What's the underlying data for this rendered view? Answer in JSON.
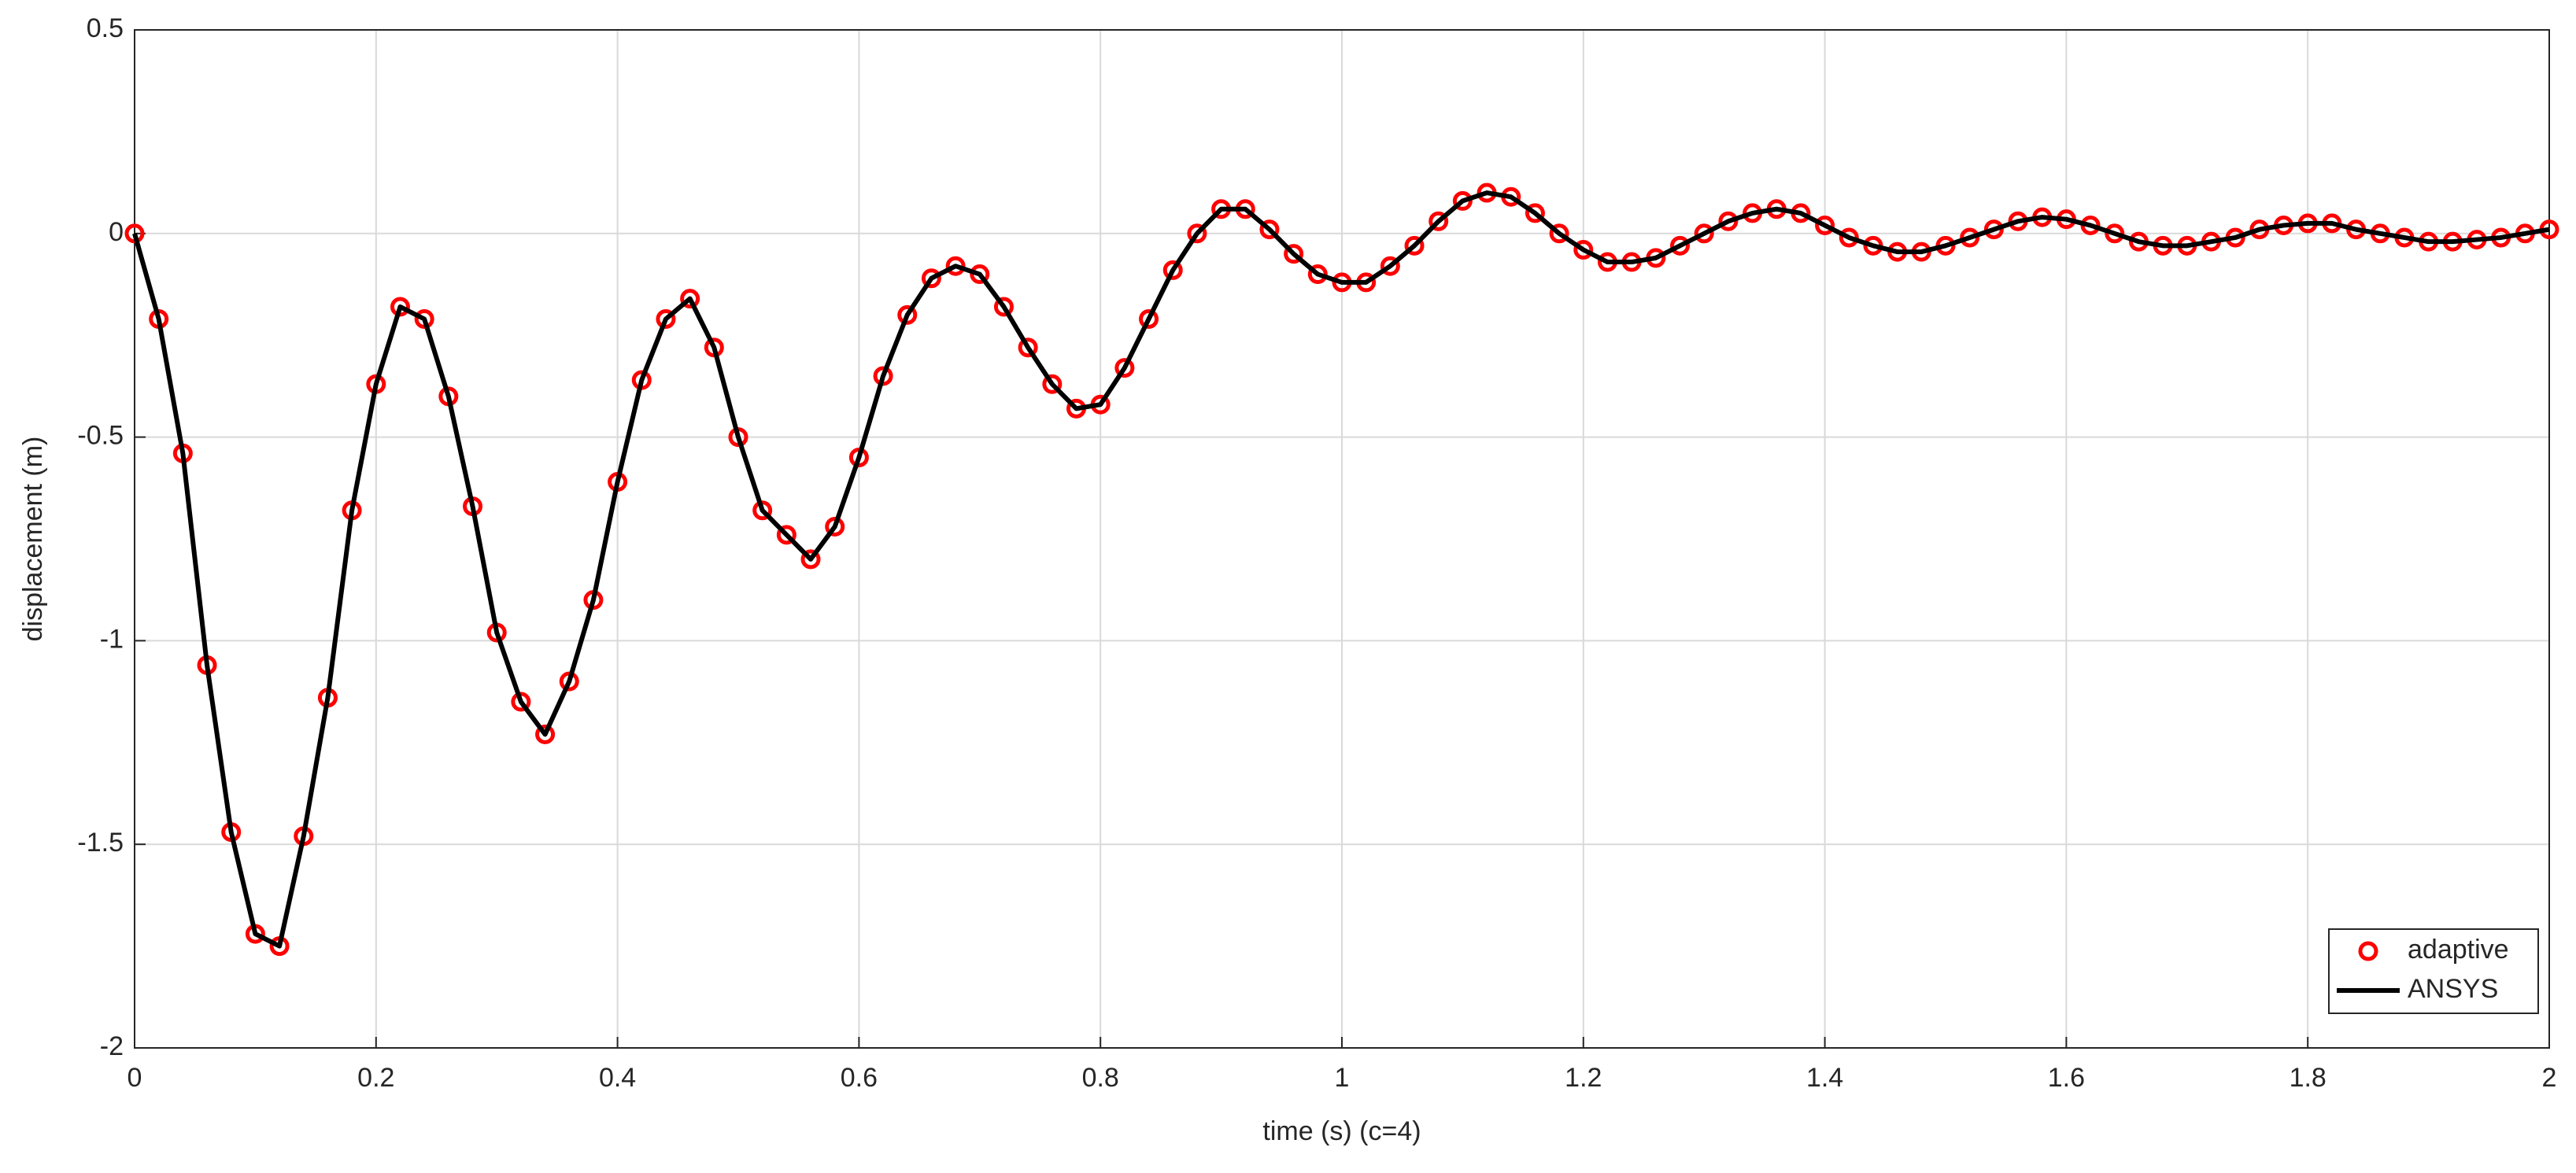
{
  "chart_data": {
    "type": "line",
    "xlabel": "time (s) (c=4)",
    "ylabel": "displacement (m)",
    "x": [
      0,
      0.02,
      0.04,
      0.06,
      0.08,
      0.1,
      0.12,
      0.14,
      0.16,
      0.18,
      0.2,
      0.22,
      0.24,
      0.26,
      0.28,
      0.3,
      0.32,
      0.34,
      0.36,
      0.38,
      0.4,
      0.42,
      0.44,
      0.46,
      0.48,
      0.5,
      0.52,
      0.54,
      0.56,
      0.58,
      0.6,
      0.62,
      0.64,
      0.66,
      0.68,
      0.7,
      0.72,
      0.74,
      0.76,
      0.78,
      0.8,
      0.82,
      0.84,
      0.86,
      0.88,
      0.9,
      0.92,
      0.94,
      0.96,
      0.98,
      1,
      1.02,
      1.04,
      1.06,
      1.08,
      1.1,
      1.12,
      1.14,
      1.16,
      1.18,
      1.2,
      1.22,
      1.24,
      1.26,
      1.28,
      1.3,
      1.32,
      1.34,
      1.36,
      1.38,
      1.4,
      1.42,
      1.44,
      1.46,
      1.48,
      1.5,
      1.52,
      1.54,
      1.56,
      1.58,
      1.6,
      1.62,
      1.64,
      1.66,
      1.68,
      1.7,
      1.72,
      1.74,
      1.76,
      1.78,
      1.8,
      1.82,
      1.84,
      1.86,
      1.88,
      1.9,
      1.92,
      1.94,
      1.96,
      1.98,
      2
    ],
    "series": [
      {
        "name": "adaptive",
        "color": "#ff0000",
        "mode": "markers",
        "values": [
          0,
          -0.21,
          -0.54,
          -1.06,
          -1.47,
          -1.72,
          -1.75,
          -1.48,
          -1.14,
          -0.68,
          -0.37,
          -0.18,
          -0.21,
          -0.4,
          -0.67,
          -0.98,
          -1.15,
          -1.23,
          -1.1,
          -0.9,
          -0.61,
          -0.36,
          -0.21,
          -0.16,
          -0.28,
          -0.5,
          -0.68,
          -0.74,
          -0.8,
          -0.72,
          -0.55,
          -0.35,
          -0.2,
          -0.11,
          -0.08,
          -0.1,
          -0.18,
          -0.28,
          -0.37,
          -0.43,
          -0.42,
          -0.33,
          -0.21,
          -0.09,
          0,
          0.06,
          0.06,
          0.01,
          -0.05,
          -0.1,
          -0.12,
          -0.12,
          -0.08,
          -0.03,
          0.03,
          0.08,
          0.1,
          0.09,
          0.05,
          0,
          -0.04,
          -0.07,
          -0.07,
          -0.06,
          -0.03,
          0,
          0.03,
          0.05,
          0.06,
          0.05,
          0.02,
          -0.01,
          -0.03,
          -0.045,
          -0.045,
          -0.03,
          -0.01,
          0.01,
          0.03,
          0.04,
          0.035,
          0.02,
          0,
          -0.02,
          -0.03,
          -0.03,
          -0.02,
          -0.01,
          0.01,
          0.02,
          0.025,
          0.025,
          0.01,
          0,
          -0.01,
          -0.02,
          -0.02,
          -0.015,
          -0.01,
          0,
          0.01
        ]
      },
      {
        "name": "ANSYS",
        "color": "#000000",
        "mode": "line",
        "values": [
          0,
          -0.21,
          -0.54,
          -1.06,
          -1.47,
          -1.72,
          -1.75,
          -1.48,
          -1.14,
          -0.68,
          -0.37,
          -0.18,
          -0.21,
          -0.4,
          -0.67,
          -0.98,
          -1.15,
          -1.23,
          -1.1,
          -0.9,
          -0.61,
          -0.36,
          -0.21,
          -0.16,
          -0.28,
          -0.5,
          -0.68,
          -0.74,
          -0.8,
          -0.72,
          -0.55,
          -0.35,
          -0.2,
          -0.11,
          -0.08,
          -0.1,
          -0.18,
          -0.28,
          -0.37,
          -0.43,
          -0.42,
          -0.33,
          -0.21,
          -0.09,
          0,
          0.06,
          0.06,
          0.01,
          -0.05,
          -0.1,
          -0.12,
          -0.12,
          -0.08,
          -0.03,
          0.03,
          0.08,
          0.1,
          0.09,
          0.05,
          0,
          -0.04,
          -0.07,
          -0.07,
          -0.06,
          -0.03,
          0,
          0.03,
          0.05,
          0.06,
          0.05,
          0.02,
          -0.01,
          -0.03,
          -0.045,
          -0.045,
          -0.03,
          -0.01,
          0.01,
          0.03,
          0.04,
          0.035,
          0.02,
          0,
          -0.02,
          -0.03,
          -0.03,
          -0.02,
          -0.01,
          0.01,
          0.02,
          0.025,
          0.025,
          0.01,
          0,
          -0.01,
          -0.02,
          -0.02,
          -0.015,
          -0.01,
          0,
          0.01
        ]
      }
    ],
    "xlim": [
      0,
      2
    ],
    "xticks": [
      0,
      0.2,
      0.4,
      0.6,
      0.8,
      1,
      1.2,
      1.4,
      1.6,
      1.8,
      2
    ],
    "ylim": [
      -2,
      0.5
    ],
    "yticks": [
      -2,
      -1.5,
      -1,
      -0.5,
      0,
      0.5
    ],
    "grid": true,
    "legend": "lower right"
  }
}
